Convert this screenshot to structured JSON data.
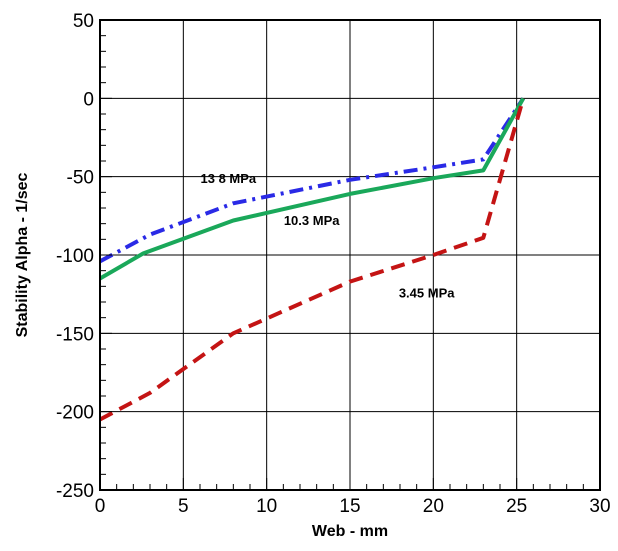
{
  "chart_data": {
    "type": "line",
    "title": "",
    "xlabel": "Web - mm",
    "ylabel": "Stability Alpha - 1/sec",
    "xlim": [
      0,
      30
    ],
    "ylim": [
      -250,
      50
    ],
    "xticks": [
      0,
      5,
      10,
      15,
      20,
      25,
      30
    ],
    "yticks": [
      50,
      0,
      -50,
      -100,
      -150,
      -200,
      -250
    ],
    "xtick_labels": [
      "0",
      "5",
      "10",
      "15",
      "20",
      "25",
      "30"
    ],
    "ytick_labels": [
      "50",
      "0",
      "-50",
      "-100",
      "-150",
      "-200",
      "-250"
    ],
    "grid": true,
    "legend": "none",
    "series": [
      {
        "name": "13 8 MPa",
        "color": "#2a2ae6",
        "dash": "dash-dot",
        "x": [
          0,
          3,
          8,
          15,
          20,
          23,
          25.4
        ],
        "y": [
          -104,
          -87,
          -67,
          -52,
          -44,
          -39,
          0
        ]
      },
      {
        "name": "10.3 MPa",
        "color": "#1aa85a",
        "dash": "solid",
        "x": [
          0,
          2.6,
          8,
          15,
          20,
          23,
          25.4
        ],
        "y": [
          -115,
          -99,
          -78,
          -61,
          -51,
          -46,
          0
        ]
      },
      {
        "name": "3.45 MPa",
        "color": "#c41414",
        "dash": "dashed",
        "x": [
          0,
          3,
          8,
          15,
          20,
          23,
          25.4
        ],
        "y": [
          -205,
          -188,
          -150,
          -117,
          -100,
          -89,
          0
        ]
      }
    ],
    "annotations": [
      {
        "text": "13 8 MPa",
        "x": 7.7,
        "y": -54
      },
      {
        "text": "10.3 MPa",
        "x": 12.7,
        "y": -81
      },
      {
        "text": "3.45 MPa",
        "x": 19.6,
        "y": -127
      }
    ]
  }
}
